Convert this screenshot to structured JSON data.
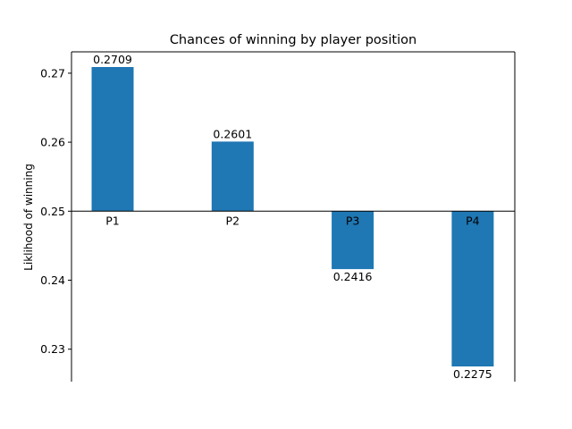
{
  "chart_data": {
    "type": "bar",
    "title": "Chances of winning by player position",
    "xlabel": "",
    "ylabel": "Liklihood of winning",
    "categories": [
      "P1",
      "P2",
      "P3",
      "P4"
    ],
    "values": [
      0.2709,
      0.2601,
      0.2416,
      0.2275
    ],
    "value_labels": [
      "0.2709",
      "0.2601",
      "0.2416",
      "0.2275"
    ],
    "baseline": 0.25,
    "ylim": [
      0.2253,
      0.2731
    ],
    "yticks": [
      0.23,
      0.24,
      0.25,
      0.26,
      0.27
    ],
    "ytick_labels": [
      "0.23",
      "0.24",
      "0.25",
      "0.26",
      "0.27"
    ],
    "bar_color": "#1f77b4",
    "grid": false,
    "legend": "none"
  }
}
